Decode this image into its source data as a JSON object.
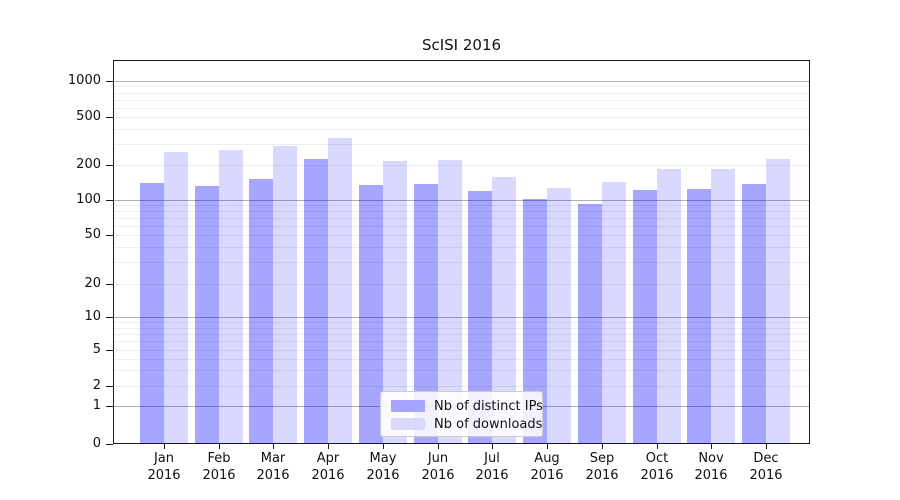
{
  "title": "ScISI 2016",
  "chart_data": {
    "type": "bar",
    "title": "ScISI 2016",
    "categories": [
      "Jan 2016",
      "Feb 2016",
      "Mar 2016",
      "Apr 2016",
      "May 2016",
      "Jun 2016",
      "Jul 2016",
      "Aug 2016",
      "Sep 2016",
      "Oct 2016",
      "Nov 2016",
      "Dec 2016"
    ],
    "series": [
      {
        "name": "Nb of distinct IPs",
        "fill": "rgba(0,0,255,0.35)",
        "fill_hex_on_white": "#a6a6ff",
        "values": [
          140,
          131,
          151,
          226,
          135,
          137,
          120,
          102,
          92,
          122,
          125,
          137
        ]
      },
      {
        "name": "Nb of downloads",
        "fill": "rgba(0,0,255,0.15)",
        "fill_hex_on_white": "#d9d9ff",
        "values": [
          255,
          268,
          290,
          338,
          215,
          218,
          158,
          127,
          143,
          185,
          185,
          224
        ]
      }
    ],
    "xlabel": "",
    "ylabel": "",
    "yscale": "symlog",
    "yticks": [
      0,
      1,
      2,
      5,
      10,
      20,
      50,
      100,
      200,
      500,
      1000
    ],
    "ylim": [
      0,
      1500
    ],
    "grid": "on",
    "grid_minor": "on",
    "legend_position": "lower-center"
  },
  "legend": {
    "items": [
      "Nb of distinct IPs",
      "Nb of downloads"
    ]
  },
  "colors": {
    "major_grid": "#b0b0b0",
    "minor_grid": "#ededed",
    "axis": "#1a1a1a",
    "background": "#ffffff"
  }
}
